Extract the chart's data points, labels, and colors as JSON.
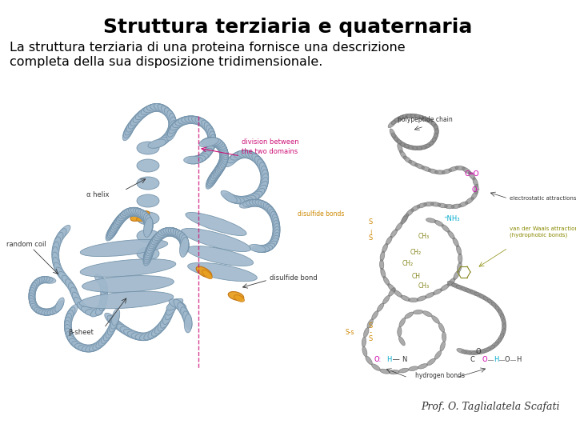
{
  "title": "Struttura terziaria e quaternaria",
  "body_line1": "La struttura terziaria di una proteina fornisce una descrizione",
  "body_line2": "completa della sua disposizione tridimensionale.",
  "attribution": "Prof. O. Taglialatela Scafati",
  "bg": "#ffffff",
  "title_fs": 18,
  "body_fs": 11.5,
  "attr_fs": 9,
  "protein_color": "#a0b8cc",
  "protein_edge": "#7090a8",
  "disulfide_color": "#e8a020",
  "chain_color": "#888888",
  "label_fs": 6,
  "pink_color": "#cc1177",
  "orange_label": "#cc8800",
  "cyan_label": "#00aacc",
  "magenta_label": "#cc00aa",
  "olive_label": "#888800"
}
